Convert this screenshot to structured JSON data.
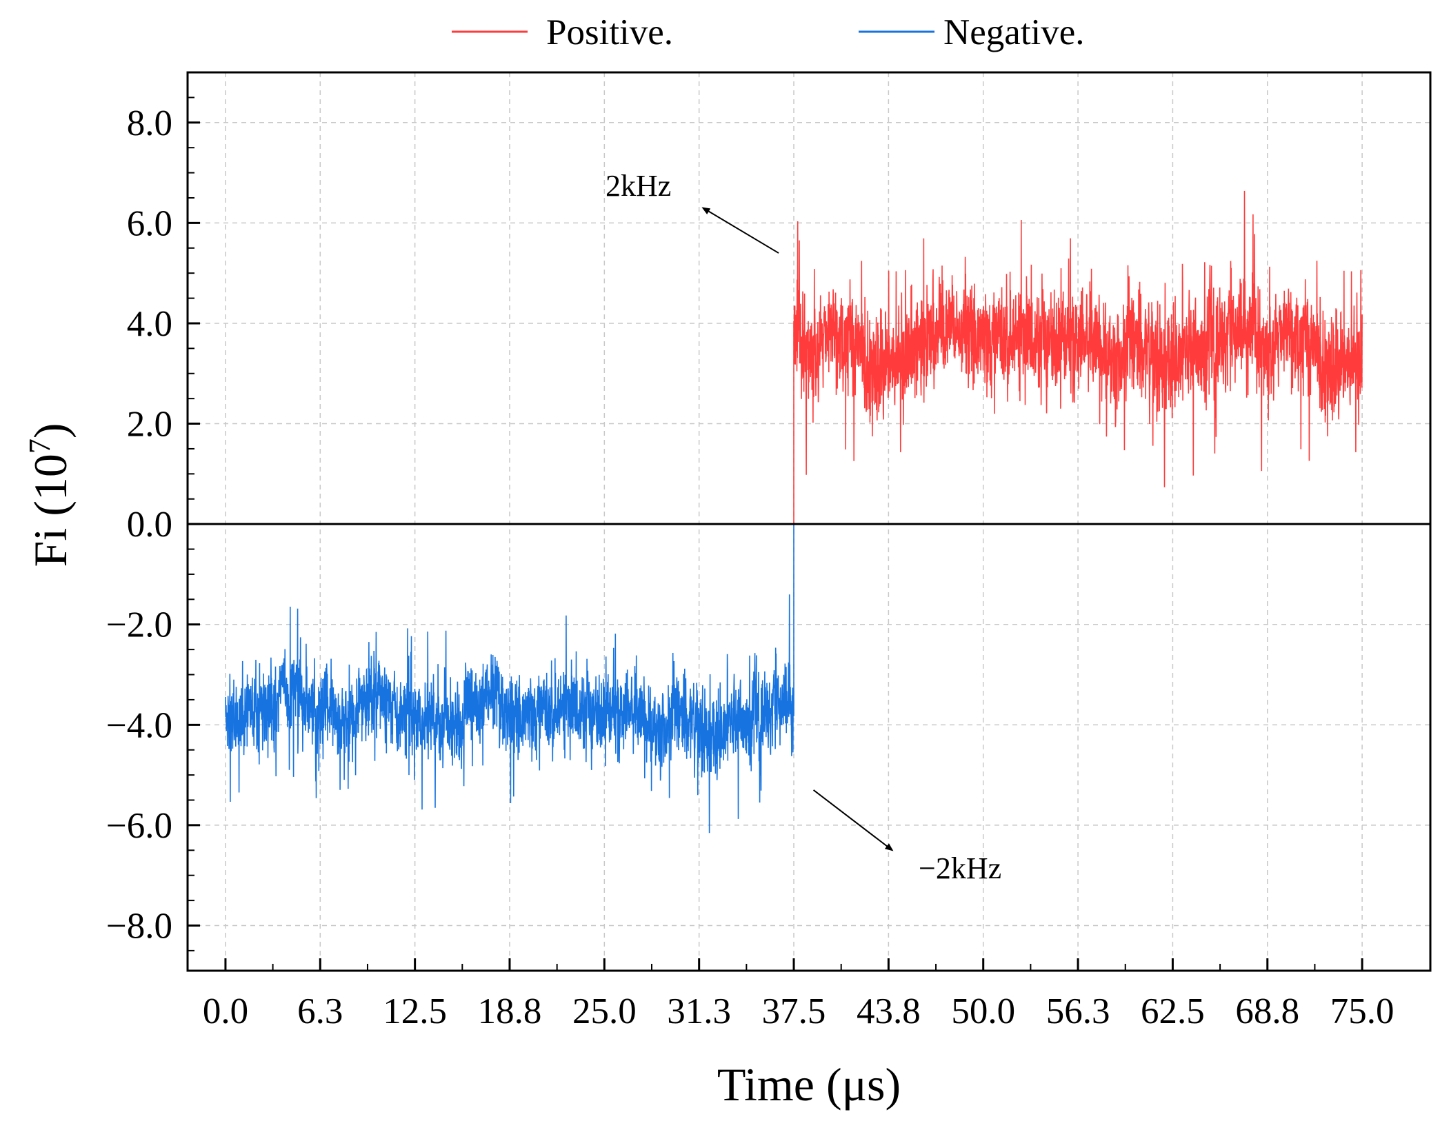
{
  "chart_data": {
    "type": "line",
    "title": "",
    "xlabel": "Time (μs)",
    "ylabel_main": "Fi (10",
    "ylabel_exp": "7",
    "ylabel_close": ")",
    "xlim": [
      -2.5,
      79.5
    ],
    "ylim": [
      -8.9,
      9.0
    ],
    "x_ticks": [
      "0.0",
      "6.3",
      "12.5",
      "18.8",
      "25.0",
      "31.3",
      "37.5",
      "43.8",
      "50.0",
      "56.3",
      "62.5",
      "68.8",
      "75.0"
    ],
    "x_tick_values": [
      0,
      6.25,
      12.5,
      18.75,
      25,
      31.25,
      37.5,
      43.75,
      50,
      56.25,
      62.5,
      68.75,
      75
    ],
    "y_ticks": [
      "−8.0",
      "−6.0",
      "−4.0",
      "−2.0",
      "0.0",
      "2.0",
      "4.0",
      "6.0",
      "8.0"
    ],
    "y_tick_values": [
      -8,
      -6,
      -4,
      -2,
      0,
      2,
      4,
      6,
      8
    ],
    "grid": true,
    "legend_position": "top-center",
    "series": [
      {
        "name": "Positive.",
        "color": "#ff3b3b",
        "x_range": [
          37.5,
          75.0
        ],
        "mean": 3.6,
        "spread": 0.9,
        "max": 7.2,
        "min": 0.7
      },
      {
        "name": "Negative.",
        "color": "#1673e0",
        "x_range": [
          0.0,
          37.5
        ],
        "mean": -3.8,
        "spread": 0.7,
        "max": -1.2,
        "min": -6.7
      }
    ],
    "annotations": [
      {
        "text": "2kHz",
        "arrow_from": [
          36.5,
          5.4
        ],
        "arrow_to": [
          31.5,
          6.3
        ]
      },
      {
        "text": "−2kHz",
        "arrow_from": [
          38.8,
          -5.3
        ],
        "arrow_to": [
          44.0,
          -6.5
        ]
      }
    ]
  }
}
